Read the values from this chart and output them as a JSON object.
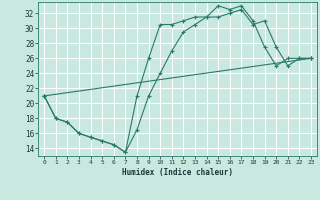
{
  "xlabel": "Humidex (Indice chaleur)",
  "background_color": "#c8e8e0",
  "grid_color": "#ffffff",
  "line_color": "#2a7a6a",
  "xlim": [
    -0.5,
    23.5
  ],
  "ylim": [
    13,
    33.5
  ],
  "yticks": [
    14,
    16,
    18,
    20,
    22,
    24,
    26,
    28,
    30,
    32
  ],
  "xticks": [
    0,
    1,
    2,
    3,
    4,
    5,
    6,
    7,
    8,
    9,
    10,
    11,
    12,
    13,
    14,
    15,
    16,
    17,
    18,
    19,
    20,
    21,
    22,
    23
  ],
  "series": [
    {
      "x": [
        0,
        1,
        2,
        3,
        4,
        5,
        6,
        7,
        8,
        9,
        10,
        11,
        12,
        13,
        14,
        15,
        16,
        17,
        18,
        19,
        20,
        21,
        22,
        23
      ],
      "y": [
        21,
        18,
        17.5,
        16,
        15.5,
        15,
        14.5,
        13.5,
        21,
        26,
        30.5,
        30.5,
        31,
        31.5,
        31.5,
        33,
        32.5,
        33,
        31,
        27.5,
        25,
        26,
        26,
        26
      ]
    },
    {
      "x": [
        0,
        1,
        2,
        3,
        4,
        5,
        6,
        7,
        8,
        9,
        10,
        11,
        12,
        13,
        14,
        15,
        16,
        17,
        18,
        19,
        20,
        21,
        22,
        23
      ],
      "y": [
        21,
        18,
        17.5,
        16,
        15.5,
        15,
        14.5,
        13.5,
        16.5,
        21,
        24,
        27,
        29.5,
        30.5,
        31.5,
        31.5,
        32,
        32.5,
        30.5,
        31,
        27.5,
        25,
        26,
        26
      ]
    },
    {
      "x": [
        0,
        23
      ],
      "y": [
        21,
        26
      ]
    }
  ]
}
